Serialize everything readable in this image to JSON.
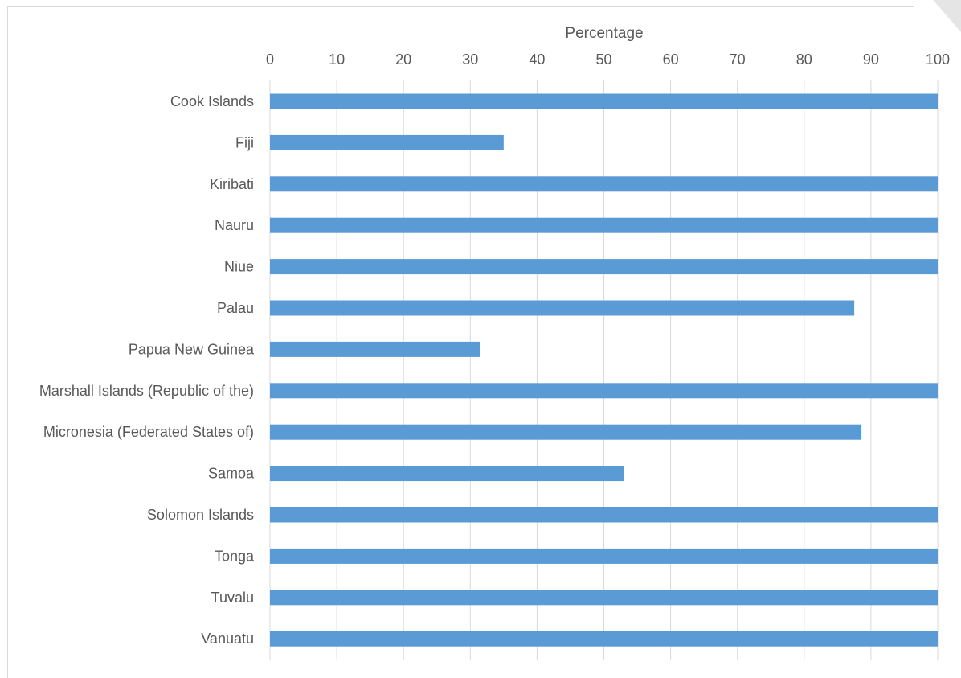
{
  "chart_data": {
    "type": "bar",
    "orientation": "horizontal",
    "title": "",
    "xlabel": "Percentage",
    "ylabel": "",
    "xlim": [
      0,
      100
    ],
    "x_ticks": [
      0,
      10,
      20,
      30,
      40,
      50,
      60,
      70,
      80,
      90,
      100
    ],
    "x_axis_position": "top",
    "grid": "vertical",
    "legend": "none",
    "bar_color": "#5B9BD5",
    "categories": [
      "Cook Islands",
      "Fiji",
      "Kiribati",
      "Nauru",
      "Niue",
      "Palau",
      "Papua New Guinea",
      "Marshall Islands (Republic of the)",
      "Micronesia (Federated States of)",
      "Samoa",
      "Solomon Islands",
      "Tonga",
      "Tuvalu",
      "Vanuatu"
    ],
    "values": [
      100,
      35,
      100,
      100,
      100,
      87.5,
      31.5,
      100,
      88.5,
      53,
      100,
      100,
      100,
      100
    ]
  }
}
